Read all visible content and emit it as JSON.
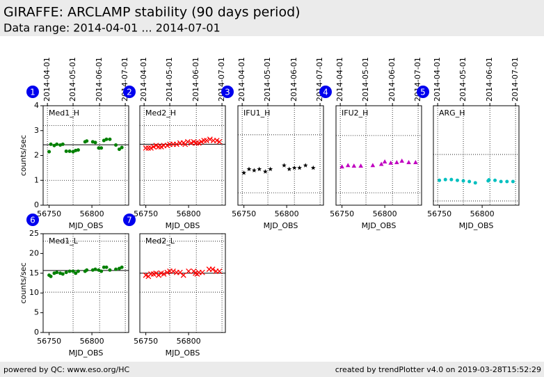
{
  "header": {
    "title": "GIRAFFE: ARCLAMP stability (90 days period)",
    "subtitle": "Data range: 2014-04-01 ... 2014-07-01"
  },
  "footer": {
    "left": "powered by QC: www.eso.org/HC",
    "right": "created by trendPlotter v4.0 on 2019-03-28T15:52:29"
  },
  "chart_data": [
    {
      "type": "scatter",
      "badge": 1,
      "title": "Med1_H",
      "x_label": "MJD_OBS",
      "y_label": "counts/sec",
      "color": "#008000",
      "marker": "dot",
      "xlim": [
        56743,
        56843
      ],
      "xticks": [
        56750,
        56800
      ],
      "x2ticks": [
        {
          "value": 56748,
          "label": "2014-04-01"
        },
        {
          "value": 56778,
          "label": "2014-05-01"
        },
        {
          "value": 56809,
          "label": "2014-06-01"
        },
        {
          "value": 56839,
          "label": "2014-07-01"
        }
      ],
      "ylim": [
        0,
        4
      ],
      "yticks": [
        0,
        1,
        2,
        3,
        4
      ],
      "reference": 2.43,
      "limits": [
        1.0,
        3.2
      ],
      "x": [
        56750,
        56752,
        56756,
        56759,
        56763,
        56766,
        56770,
        56774,
        56778,
        56781,
        56784,
        56792,
        56794,
        56801,
        56804,
        56808,
        56811,
        56814,
        56817,
        56821,
        56828,
        56832,
        56835
      ],
      "values": [
        2.15,
        2.45,
        2.4,
        2.45,
        2.42,
        2.45,
        2.17,
        2.17,
        2.15,
        2.2,
        2.22,
        2.55,
        2.58,
        2.55,
        2.52,
        2.3,
        2.3,
        2.6,
        2.65,
        2.65,
        2.42,
        2.25,
        2.32
      ]
    },
    {
      "type": "scatter",
      "badge": 2,
      "title": "Med2_H",
      "x_label": "MJD_OBS",
      "color": "#ff0000",
      "marker": "x",
      "xlim": [
        56743,
        56843
      ],
      "xticks": [
        56750,
        56800
      ],
      "x2ticks": [
        {
          "value": 56748,
          "label": "2014-04-01"
        },
        {
          "value": 56778,
          "label": "2014-05-01"
        },
        {
          "value": 56809,
          "label": "2014-06-01"
        },
        {
          "value": 56839,
          "label": "2014-07-01"
        }
      ],
      "ylim": [
        0,
        4
      ],
      "reference": 2.45,
      "limits": [
        1.0,
        3.2
      ],
      "x": [
        56750,
        56753,
        56756,
        56759,
        56762,
        56765,
        56768,
        56771,
        56775,
        56778,
        56782,
        56786,
        56790,
        56794,
        56796,
        56799,
        56803,
        56806,
        56809,
        56812,
        56815,
        56818,
        56821,
        56825,
        56829,
        56833,
        56836
      ],
      "values": [
        2.3,
        2.3,
        2.3,
        2.35,
        2.4,
        2.35,
        2.35,
        2.4,
        2.4,
        2.45,
        2.45,
        2.45,
        2.5,
        2.5,
        2.45,
        2.55,
        2.5,
        2.55,
        2.5,
        2.5,
        2.55,
        2.6,
        2.6,
        2.65,
        2.6,
        2.6,
        2.55
      ]
    },
    {
      "type": "scatter",
      "badge": 3,
      "title": "IFU1_H",
      "x_label": "MJD_OBS",
      "color": "#000000",
      "marker": "star",
      "xlim": [
        56743,
        56843
      ],
      "xticks": [
        56750,
        56800
      ],
      "x2ticks": [
        {
          "value": 56748,
          "label": "2014-04-01"
        },
        {
          "value": 56778,
          "label": "2014-05-01"
        },
        {
          "value": 56809,
          "label": "2014-06-01"
        },
        {
          "value": 56839,
          "label": "2014-07-01"
        }
      ],
      "ylim": [
        0,
        4
      ],
      "limits": [
        0.5,
        2.83
      ],
      "x": [
        56750,
        56756,
        56762,
        56768,
        56775,
        56781,
        56797,
        56803,
        56809,
        56815,
        56822,
        56831
      ],
      "values": [
        1.3,
        1.45,
        1.4,
        1.45,
        1.35,
        1.45,
        1.6,
        1.45,
        1.5,
        1.5,
        1.6,
        1.5
      ]
    },
    {
      "type": "scatter",
      "badge": 4,
      "title": "IFU2_H",
      "x_label": "MJD_OBS",
      "color": "#c000c0",
      "marker": "triangle",
      "xlim": [
        56743,
        56843
      ],
      "xticks": [
        56750,
        56800
      ],
      "x2ticks": [
        {
          "value": 56748,
          "label": "2014-04-01"
        },
        {
          "value": 56778,
          "label": "2014-05-01"
        },
        {
          "value": 56809,
          "label": "2014-06-01"
        },
        {
          "value": 56839,
          "label": "2014-07-01"
        }
      ],
      "ylim": [
        0,
        4
      ],
      "limits": [
        0.5,
        2.8
      ],
      "x": [
        56750,
        56757,
        56764,
        56772,
        56786,
        56796,
        56800,
        56807,
        56814,
        56820,
        56828,
        56836
      ],
      "values": [
        1.55,
        1.6,
        1.58,
        1.58,
        1.6,
        1.65,
        1.75,
        1.7,
        1.72,
        1.78,
        1.72,
        1.72
      ]
    },
    {
      "type": "scatter",
      "badge": 5,
      "title": "ARG_H",
      "x_label": "MJD_OBS",
      "color": "#00bfbf",
      "marker": "dot",
      "xlim": [
        56743,
        56843
      ],
      "xticks": [
        56750,
        56800
      ],
      "x2ticks": [
        {
          "value": 56748,
          "label": "2014-04-01"
        },
        {
          "value": 56778,
          "label": "2014-05-01"
        },
        {
          "value": 56809,
          "label": "2014-06-01"
        },
        {
          "value": 56839,
          "label": "2014-07-01"
        }
      ],
      "ylim": [
        0,
        4
      ],
      "limits": [
        0.17,
        2.04
      ],
      "x": [
        56750,
        56757,
        56764,
        56771,
        56778,
        56785,
        56792,
        56807,
        56808,
        56815,
        56822,
        56829,
        56836
      ],
      "values": [
        1.0,
        1.03,
        1.03,
        1.0,
        0.98,
        0.95,
        0.9,
        0.98,
        1.02,
        1.0,
        0.95,
        0.95,
        0.95
      ]
    },
    {
      "type": "scatter",
      "badge": 6,
      "title": "Med1_L",
      "x_label": "MJD_OBS",
      "y_label": "counts/sec",
      "color": "#008000",
      "marker": "dot",
      "xlim": [
        56743,
        56843
      ],
      "xticks": [
        56750,
        56800
      ],
      "xgrid": [
        56778,
        56809,
        56839
      ],
      "ylim": [
        0,
        25
      ],
      "yticks": [
        0,
        5,
        10,
        15,
        20,
        25
      ],
      "reference": 15.7,
      "limits": [
        10.2,
        23.1
      ],
      "x": [
        56750,
        56752,
        56756,
        56759,
        56763,
        56766,
        56770,
        56774,
        56778,
        56781,
        56784,
        56792,
        56794,
        56801,
        56804,
        56808,
        56811,
        56814,
        56817,
        56821,
        56828,
        56832,
        56835
      ],
      "values": [
        14.5,
        14.2,
        15,
        15.2,
        15,
        14.8,
        15.2,
        15.5,
        15.5,
        15,
        15.5,
        15.5,
        15.8,
        15.8,
        16,
        15.8,
        15.5,
        16.5,
        16.5,
        15.8,
        16,
        16.2,
        16.5
      ]
    },
    {
      "type": "scatter",
      "badge": 7,
      "title": "Med2_L",
      "x_label": "MJD_OBS",
      "color": "#ff0000",
      "marker": "x",
      "xlim": [
        56743,
        56843
      ],
      "xticks": [
        56750,
        56800
      ],
      "xgrid": [
        56778,
        56809,
        56839
      ],
      "ylim": [
        0,
        25
      ],
      "reference": 15.0,
      "limits": [
        10.2,
        23.1
      ],
      "x": [
        56750,
        56753,
        56756,
        56759,
        56762,
        56765,
        56768,
        56771,
        56775,
        56778,
        56782,
        56786,
        56790,
        56794,
        56800,
        56806,
        56808,
        56810,
        56812,
        56816,
        56824,
        56828,
        56832,
        56836
      ],
      "values": [
        14.5,
        14.2,
        14.8,
        14.8,
        15,
        14.5,
        15,
        14.8,
        15.2,
        15.5,
        15.5,
        15.2,
        15.2,
        14.5,
        15.5,
        15.5,
        15,
        14.8,
        15.2,
        15.2,
        16,
        16,
        15.5,
        15.5
      ]
    }
  ]
}
